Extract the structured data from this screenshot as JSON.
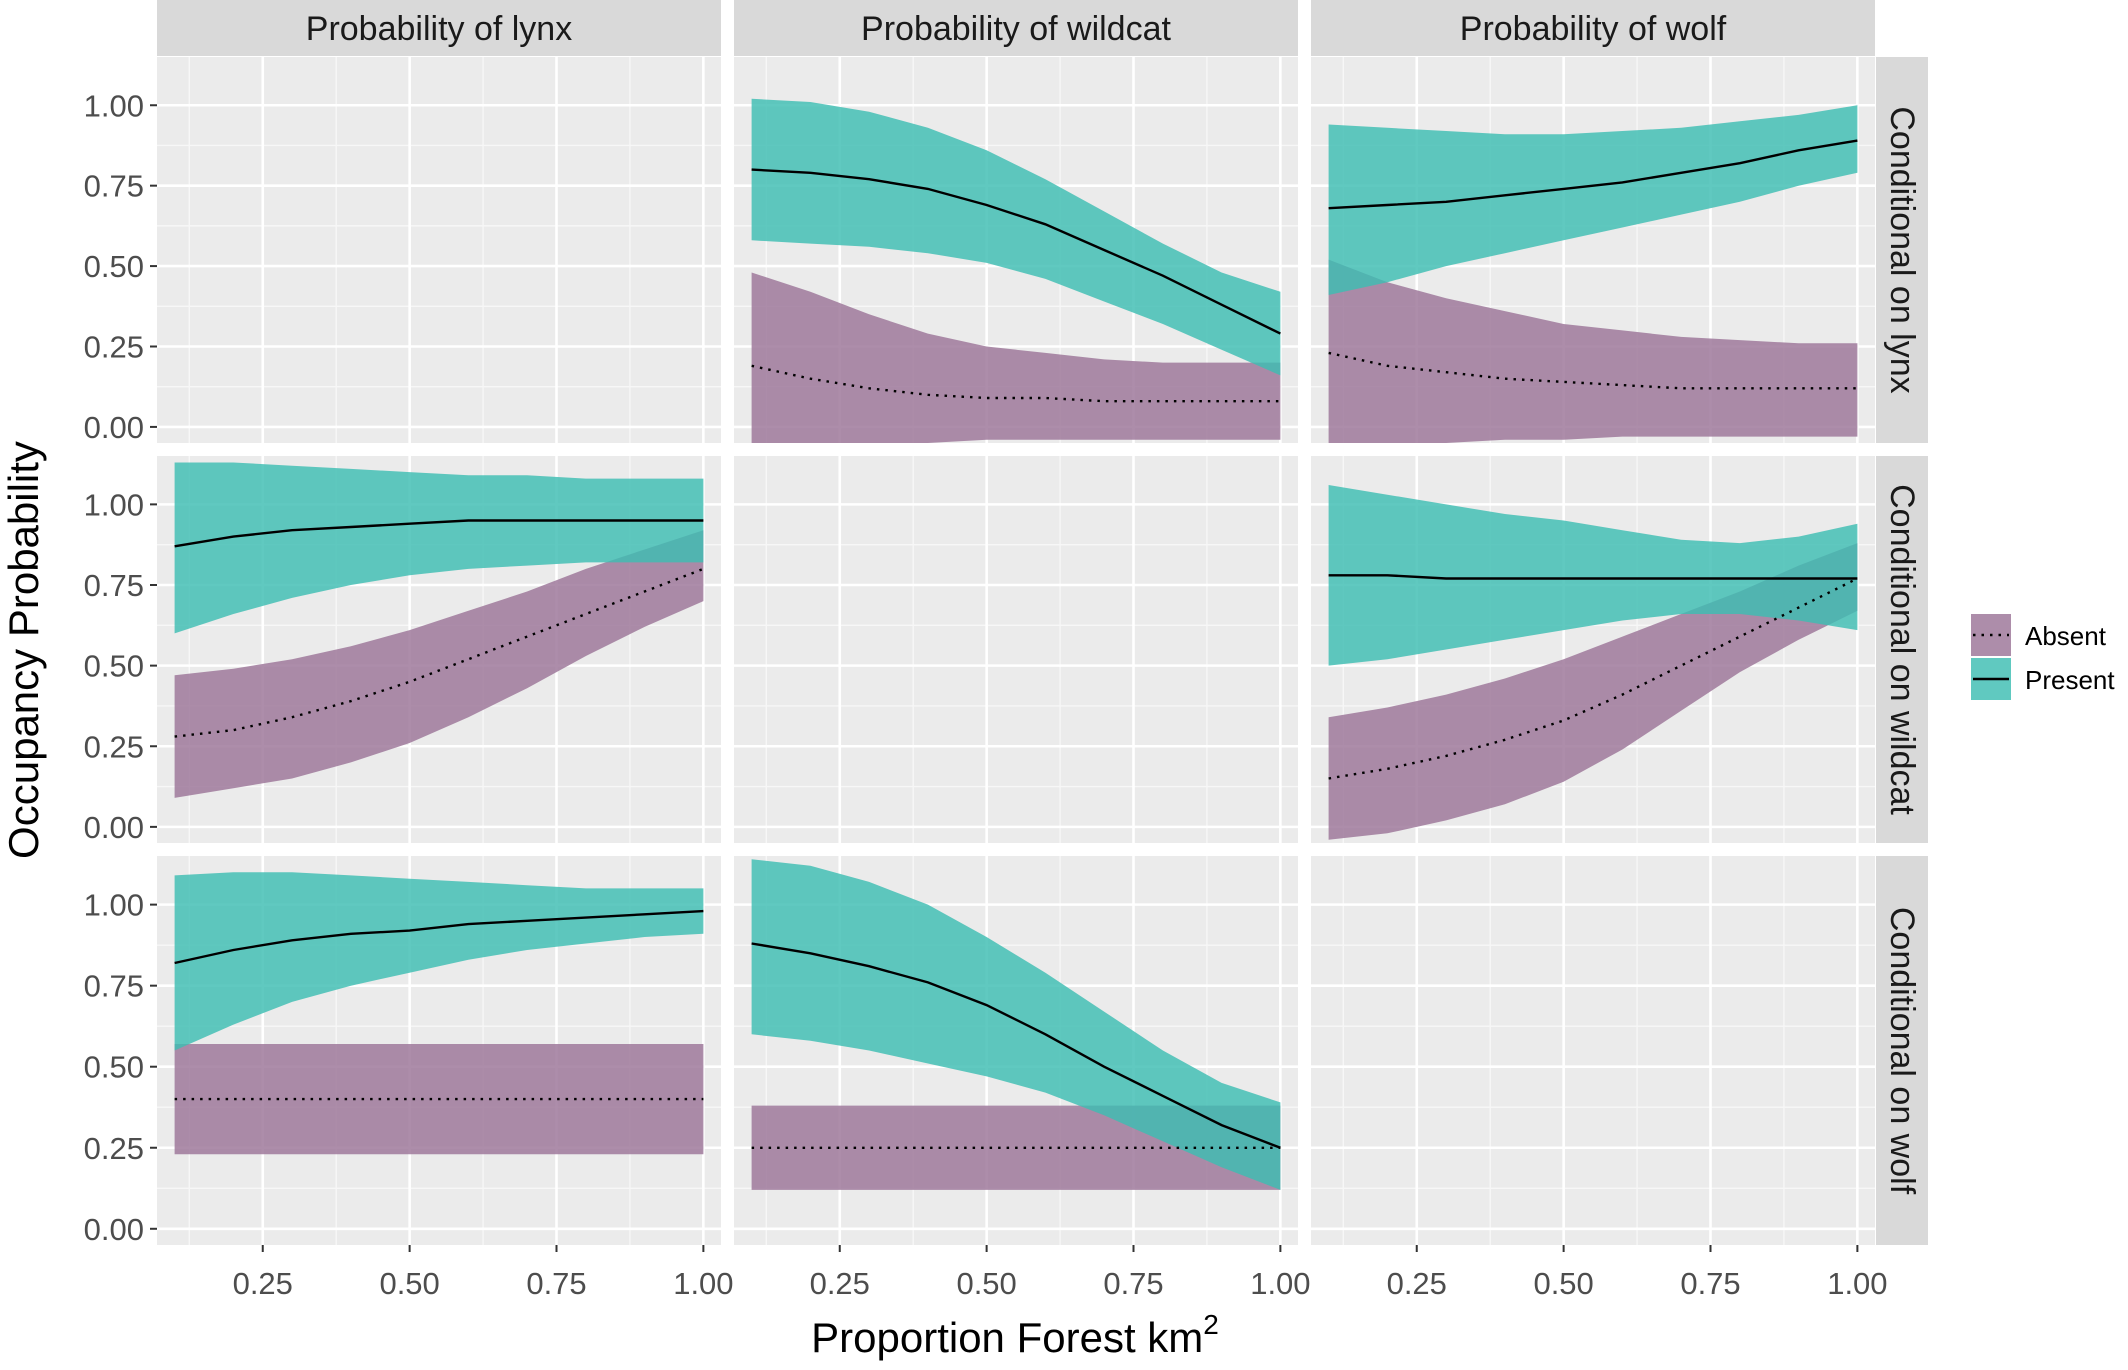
{
  "chart_data": {
    "type": "line",
    "xlabel": "Proportion Forest  km",
    "xlabel_superscript": "2",
    "ylabel": "Occupancy Probability",
    "xlim": [
      0.07,
      1.03
    ],
    "ylim": [
      -0.05,
      1.15
    ],
    "x_ticks": [
      "0.25",
      "0.50",
      "0.75",
      "1.00"
    ],
    "y_ticks": [
      "0.00",
      "0.25",
      "0.50",
      "0.75",
      "1.00"
    ],
    "grid": true,
    "legend_position": "right",
    "column_strips": [
      "Probability of lynx",
      "Probability of wildcat",
      "Probability of wolf"
    ],
    "row_strips": [
      "Conditional on lynx",
      "Conditional on wildcat",
      "Conditional on wolf"
    ],
    "legend": [
      {
        "label": "Absent",
        "fill": "#9b7497",
        "linetype": "dotted"
      },
      {
        "label": "Present",
        "fill": "#3dbdb2",
        "linetype": "solid"
      }
    ],
    "colors": {
      "absent_fill": "#9b7497",
      "present_fill": "#3dbdb2",
      "panel_bg": "#ebebeb",
      "strip_bg": "#d9d9d9",
      "line": "#000000"
    },
    "panels": [
      {
        "row": 0,
        "col": 1,
        "x": [
          0.1,
          0.2,
          0.3,
          0.4,
          0.5,
          0.6,
          0.7,
          0.8,
          0.9,
          1.0
        ],
        "absent": {
          "mean": [
            0.19,
            0.15,
            0.12,
            0.1,
            0.09,
            0.09,
            0.08,
            0.08,
            0.08,
            0.08
          ],
          "lower": [
            -0.05,
            -0.05,
            -0.05,
            -0.05,
            -0.04,
            -0.04,
            -0.04,
            -0.04,
            -0.04,
            -0.04
          ],
          "upper": [
            0.48,
            0.42,
            0.35,
            0.29,
            0.25,
            0.23,
            0.21,
            0.2,
            0.2,
            0.2
          ]
        },
        "present": {
          "mean": [
            0.8,
            0.79,
            0.77,
            0.74,
            0.69,
            0.63,
            0.55,
            0.47,
            0.38,
            0.29
          ],
          "lower": [
            0.58,
            0.57,
            0.56,
            0.54,
            0.51,
            0.46,
            0.39,
            0.32,
            0.24,
            0.16
          ],
          "upper": [
            1.02,
            1.01,
            0.98,
            0.93,
            0.86,
            0.77,
            0.67,
            0.57,
            0.48,
            0.42
          ]
        }
      },
      {
        "row": 0,
        "col": 2,
        "x": [
          0.1,
          0.2,
          0.3,
          0.4,
          0.5,
          0.6,
          0.7,
          0.8,
          0.9,
          1.0
        ],
        "absent": {
          "mean": [
            0.23,
            0.19,
            0.17,
            0.15,
            0.14,
            0.13,
            0.12,
            0.12,
            0.12,
            0.12
          ],
          "lower": [
            -0.05,
            -0.05,
            -0.05,
            -0.04,
            -0.04,
            -0.03,
            -0.03,
            -0.03,
            -0.03,
            -0.03
          ],
          "upper": [
            0.52,
            0.45,
            0.4,
            0.36,
            0.32,
            0.3,
            0.28,
            0.27,
            0.26,
            0.26
          ]
        },
        "present": {
          "mean": [
            0.68,
            0.69,
            0.7,
            0.72,
            0.74,
            0.76,
            0.79,
            0.82,
            0.86,
            0.89
          ],
          "lower": [
            0.41,
            0.45,
            0.5,
            0.54,
            0.58,
            0.62,
            0.66,
            0.7,
            0.75,
            0.79
          ],
          "upper": [
            0.94,
            0.93,
            0.92,
            0.91,
            0.91,
            0.92,
            0.93,
            0.95,
            0.97,
            1.0
          ]
        }
      },
      {
        "row": 1,
        "col": 0,
        "x": [
          0.1,
          0.2,
          0.3,
          0.4,
          0.5,
          0.6,
          0.7,
          0.8,
          0.9,
          1.0
        ],
        "absent": {
          "mean": [
            0.28,
            0.3,
            0.34,
            0.39,
            0.45,
            0.52,
            0.59,
            0.66,
            0.73,
            0.8
          ],
          "lower": [
            0.09,
            0.12,
            0.15,
            0.2,
            0.26,
            0.34,
            0.43,
            0.53,
            0.62,
            0.7
          ],
          "upper": [
            0.47,
            0.49,
            0.52,
            0.56,
            0.61,
            0.67,
            0.73,
            0.8,
            0.86,
            0.92
          ]
        },
        "present": {
          "mean": [
            0.87,
            0.9,
            0.92,
            0.93,
            0.94,
            0.95,
            0.95,
            0.95,
            0.95,
            0.95
          ],
          "lower": [
            0.6,
            0.66,
            0.71,
            0.75,
            0.78,
            0.8,
            0.81,
            0.82,
            0.82,
            0.82
          ],
          "upper": [
            1.13,
            1.13,
            1.12,
            1.11,
            1.1,
            1.09,
            1.09,
            1.08,
            1.08,
            1.08
          ]
        }
      },
      {
        "row": 1,
        "col": 2,
        "x": [
          0.1,
          0.2,
          0.3,
          0.4,
          0.5,
          0.6,
          0.7,
          0.8,
          0.9,
          1.0
        ],
        "absent": {
          "mean": [
            0.15,
            0.18,
            0.22,
            0.27,
            0.33,
            0.41,
            0.5,
            0.59,
            0.68,
            0.77
          ],
          "lower": [
            -0.04,
            -0.02,
            0.02,
            0.07,
            0.14,
            0.24,
            0.36,
            0.48,
            0.58,
            0.67
          ],
          "upper": [
            0.34,
            0.37,
            0.41,
            0.46,
            0.52,
            0.59,
            0.66,
            0.73,
            0.81,
            0.88
          ]
        },
        "present": {
          "mean": [
            0.78,
            0.78,
            0.77,
            0.77,
            0.77,
            0.77,
            0.77,
            0.77,
            0.77,
            0.77
          ],
          "lower": [
            0.5,
            0.52,
            0.55,
            0.58,
            0.61,
            0.64,
            0.66,
            0.66,
            0.64,
            0.61
          ],
          "upper": [
            1.06,
            1.03,
            1.0,
            0.97,
            0.95,
            0.92,
            0.89,
            0.88,
            0.9,
            0.94
          ]
        }
      },
      {
        "row": 2,
        "col": 0,
        "x": [
          0.1,
          0.2,
          0.3,
          0.4,
          0.5,
          0.6,
          0.7,
          0.8,
          0.9,
          1.0
        ],
        "absent": {
          "mean": [
            0.4,
            0.4,
            0.4,
            0.4,
            0.4,
            0.4,
            0.4,
            0.4,
            0.4,
            0.4
          ],
          "lower": [
            0.23,
            0.23,
            0.23,
            0.23,
            0.23,
            0.23,
            0.23,
            0.23,
            0.23,
            0.23
          ],
          "upper": [
            0.57,
            0.57,
            0.57,
            0.57,
            0.57,
            0.57,
            0.57,
            0.57,
            0.57,
            0.57
          ]
        },
        "present": {
          "mean": [
            0.82,
            0.86,
            0.89,
            0.91,
            0.92,
            0.94,
            0.95,
            0.96,
            0.97,
            0.98
          ],
          "lower": [
            0.55,
            0.63,
            0.7,
            0.75,
            0.79,
            0.83,
            0.86,
            0.88,
            0.9,
            0.91
          ],
          "upper": [
            1.09,
            1.1,
            1.1,
            1.09,
            1.08,
            1.07,
            1.06,
            1.05,
            1.05,
            1.05
          ]
        }
      },
      {
        "row": 2,
        "col": 1,
        "x": [
          0.1,
          0.2,
          0.3,
          0.4,
          0.5,
          0.6,
          0.7,
          0.8,
          0.9,
          1.0
        ],
        "absent": {
          "mean": [
            0.25,
            0.25,
            0.25,
            0.25,
            0.25,
            0.25,
            0.25,
            0.25,
            0.25,
            0.25
          ],
          "lower": [
            0.12,
            0.12,
            0.12,
            0.12,
            0.12,
            0.12,
            0.12,
            0.12,
            0.12,
            0.12
          ],
          "upper": [
            0.38,
            0.38,
            0.38,
            0.38,
            0.38,
            0.38,
            0.38,
            0.38,
            0.38,
            0.38
          ]
        },
        "present": {
          "mean": [
            0.88,
            0.85,
            0.81,
            0.76,
            0.69,
            0.6,
            0.5,
            0.41,
            0.32,
            0.25
          ],
          "lower": [
            0.6,
            0.58,
            0.55,
            0.51,
            0.47,
            0.42,
            0.35,
            0.27,
            0.19,
            0.12
          ],
          "upper": [
            1.14,
            1.12,
            1.07,
            1.0,
            0.9,
            0.79,
            0.67,
            0.55,
            0.45,
            0.39
          ]
        }
      }
    ]
  }
}
